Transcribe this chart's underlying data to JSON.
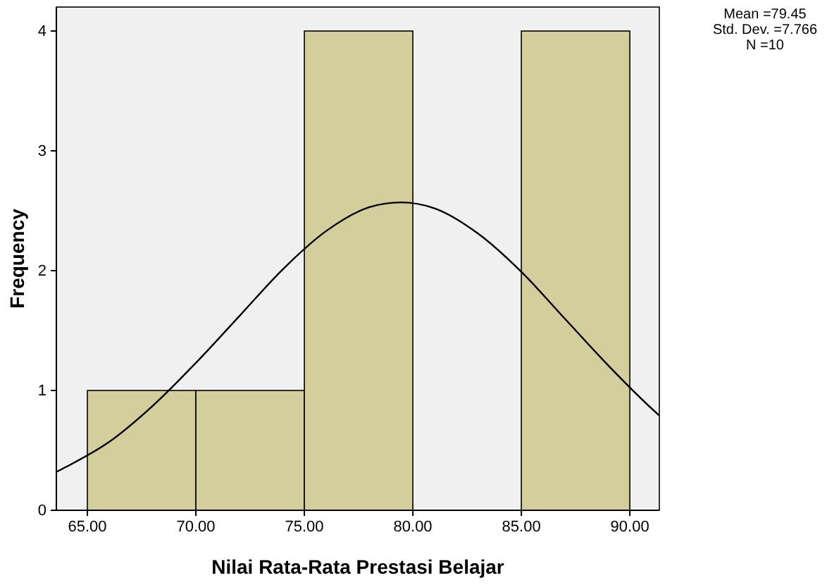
{
  "chart_data": {
    "type": "histogram",
    "xlabel": "Nilai Rata-Rata Prestasi Belajar",
    "ylabel": "Frequency",
    "bins": [
      65,
      70,
      75,
      80,
      85,
      90
    ],
    "values": [
      1,
      1,
      4,
      0,
      4
    ],
    "color": "#d3ce9b",
    "series": [
      {
        "type": "line",
        "color": "#000000",
        "x": [
          63.57,
          64,
          66,
          68,
          70,
          72,
          74,
          76,
          78,
          79.45,
          81,
          83,
          85,
          87,
          89,
          91,
          91.36
        ],
        "values": [
          0.32,
          0.36,
          0.57,
          0.87,
          1.23,
          1.62,
          2.01,
          2.33,
          2.53,
          2.57,
          2.52,
          2.31,
          1.99,
          1.6,
          1.21,
          0.85,
          0.79
        ]
      }
    ],
    "xlim": [
      63.57,
      91.36
    ],
    "ylim": [
      0,
      4.2
    ],
    "xticks": [
      {
        "value": 65,
        "label": "65.00"
      },
      {
        "value": 70,
        "label": "70.00"
      },
      {
        "value": 75,
        "label": "75.00"
      },
      {
        "value": 80,
        "label": "80.00"
      },
      {
        "value": 85,
        "label": "85.00"
      },
      {
        "value": 90,
        "label": "90.00"
      }
    ],
    "yticks": [
      0,
      1,
      2,
      3,
      4
    ],
    "annotations": [
      "Mean =79.45",
      "Std. Dev. =7.766",
      "N =10"
    ]
  }
}
